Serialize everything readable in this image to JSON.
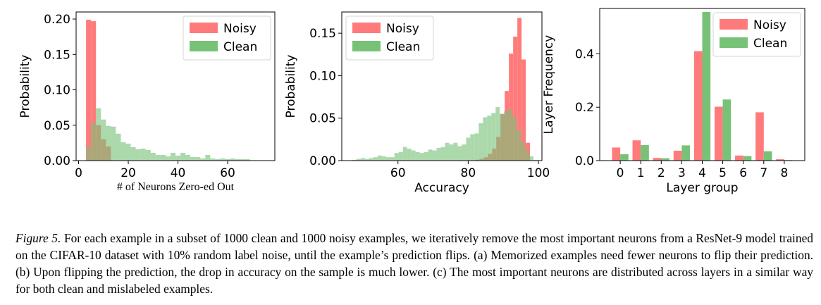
{
  "figure": {
    "caption_label": "Figure 5.",
    "caption_text": "For each example in a subset of 1000 clean and 1000 noisy examples, we iteratively remove the most important neurons from a ResNet-9 model trained on the CIFAR-10 dataset with 10% random label noise, until the example’s prediction flips. (a) Memorized examples need fewer neurons to flip their prediction. (b) Upon flipping the prediction, the drop in accuracy on the sample is much lower. (c) The most important neurons are distributed across layers in a similar way for both clean and mislabeled examples."
  },
  "colors": {
    "noisy": "#ff7b7b",
    "clean": "#77c277",
    "overlap": "#8c7a3c"
  },
  "chart_data": [
    {
      "type": "histogram",
      "xlabel": "# of Neurons Zero-ed Out",
      "ylabel": "Probability",
      "xlim": [
        -1,
        79
      ],
      "ylim": [
        0,
        0.21
      ],
      "xticks": [
        0,
        20,
        40,
        60
      ],
      "yticks": [
        0.0,
        0.05,
        0.1,
        0.15,
        0.2
      ],
      "ytick_labels": [
        "0.00",
        "0.05",
        "0.10",
        "0.15",
        "0.20"
      ],
      "legend_position": "top-right",
      "series": [
        {
          "name": "Noisy",
          "bins": [
            [
              3,
              5
            ],
            [
              5,
              7
            ],
            [
              7,
              9
            ],
            [
              9,
              11
            ],
            [
              11,
              13
            ]
          ],
          "values": [
            0.199,
            0.197,
            0.05,
            0.03,
            0.02
          ]
        },
        {
          "name": "Clean",
          "bins": [
            [
              3,
              5
            ],
            [
              5,
              7
            ],
            [
              7,
              9
            ],
            [
              9,
              11
            ],
            [
              11,
              13
            ],
            [
              13,
              15
            ],
            [
              15,
              17
            ],
            [
              17,
              19
            ],
            [
              19,
              21
            ],
            [
              21,
              23
            ],
            [
              23,
              25
            ],
            [
              25,
              27
            ],
            [
              27,
              29
            ],
            [
              29,
              31
            ],
            [
              31,
              33
            ],
            [
              33,
              35
            ],
            [
              35,
              37
            ],
            [
              37,
              39
            ],
            [
              39,
              41
            ],
            [
              41,
              43
            ],
            [
              43,
              45
            ],
            [
              45,
              47
            ],
            [
              47,
              49
            ],
            [
              49,
              51
            ],
            [
              51,
              53
            ],
            [
              53,
              55
            ],
            [
              55,
              57
            ],
            [
              57,
              59
            ],
            [
              59,
              61
            ],
            [
              61,
              63
            ],
            [
              63,
              65
            ],
            [
              65,
              67
            ],
            [
              67,
              69
            ]
          ],
          "values": [
            0.019,
            0.053,
            0.074,
            0.058,
            0.049,
            0.048,
            0.038,
            0.026,
            0.024,
            0.019,
            0.016,
            0.017,
            0.015,
            0.011,
            0.008,
            0.008,
            0.006,
            0.011,
            0.007,
            0.011,
            0.008,
            0.005,
            0.005,
            0.003,
            0.008,
            0.003,
            0.002,
            0.003,
            0.002,
            0.003,
            0.002,
            0.002,
            0.002
          ]
        }
      ]
    },
    {
      "type": "histogram",
      "xlabel": "Accuracy",
      "ylabel": "Probability",
      "xlim": [
        44,
        101
      ],
      "ylim": [
        0,
        0.175
      ],
      "xticks": [
        60,
        80,
        100
      ],
      "yticks": [
        0.0,
        0.05,
        0.1,
        0.15
      ],
      "ytick_labels": [
        "0.00",
        "0.05",
        "0.10",
        "0.15"
      ],
      "legend_position": "top-left",
      "series": [
        {
          "name": "Noisy",
          "bins": [
            [
              82,
              83.2
            ],
            [
              83.2,
              84.4
            ],
            [
              84.4,
              85.6
            ],
            [
              85.6,
              86.8
            ],
            [
              86.8,
              88
            ],
            [
              88,
              89.2
            ],
            [
              89.2,
              90.4
            ],
            [
              90.4,
              91.6
            ],
            [
              91.6,
              92.8
            ],
            [
              92.8,
              94
            ],
            [
              94,
              95.2
            ],
            [
              95.2,
              96.4
            ],
            [
              96.4,
              97.6
            ]
          ],
          "values": [
            0.001,
            0.002,
            0.004,
            0.008,
            0.014,
            0.028,
            0.055,
            0.082,
            0.126,
            0.146,
            0.168,
            0.119,
            0.021
          ]
        },
        {
          "name": "Clean",
          "bins": [
            [
              47,
              48.2
            ],
            [
              48.2,
              49.4
            ],
            [
              49.4,
              50.6
            ],
            [
              50.6,
              51.8
            ],
            [
              51.8,
              53
            ],
            [
              53,
              54.2
            ],
            [
              54.2,
              55.4
            ],
            [
              55.4,
              56.6
            ],
            [
              56.6,
              57.8
            ],
            [
              57.8,
              59
            ],
            [
              59,
              60.2
            ],
            [
              60.2,
              61.4
            ],
            [
              61.4,
              62.6
            ],
            [
              62.6,
              63.8
            ],
            [
              63.8,
              65
            ],
            [
              65,
              66.2
            ],
            [
              66.2,
              67.4
            ],
            [
              67.4,
              68.6
            ],
            [
              68.6,
              69.8
            ],
            [
              69.8,
              71
            ],
            [
              71,
              72.2
            ],
            [
              72.2,
              73.4
            ],
            [
              73.4,
              74.6
            ],
            [
              74.6,
              75.8
            ],
            [
              75.8,
              77
            ],
            [
              77,
              78.2
            ],
            [
              78.2,
              79.4
            ],
            [
              79.4,
              80.6
            ],
            [
              80.6,
              81.8
            ],
            [
              81.8,
              83
            ],
            [
              83,
              84.2
            ],
            [
              84.2,
              85.4
            ],
            [
              85.4,
              86.6
            ],
            [
              86.6,
              87.8
            ],
            [
              87.8,
              89
            ],
            [
              89,
              90.2
            ],
            [
              90.2,
              91.4
            ],
            [
              91.4,
              92.6
            ],
            [
              92.6,
              93.8
            ],
            [
              93.8,
              95
            ],
            [
              95,
              96.2
            ],
            [
              96.2,
              97.4
            ],
            [
              97.4,
              98.6
            ],
            [
              98.6,
              99.8
            ]
          ],
          "values": [
            0.001,
            0.002,
            0.003,
            0.002,
            0.003,
            0.004,
            0.006,
            0.005,
            0.004,
            0.004,
            0.009,
            0.01,
            0.016,
            0.014,
            0.012,
            0.01,
            0.009,
            0.01,
            0.013,
            0.012,
            0.015,
            0.016,
            0.021,
            0.019,
            0.021,
            0.017,
            0.019,
            0.027,
            0.031,
            0.032,
            0.044,
            0.051,
            0.053,
            0.056,
            0.063,
            0.055,
            0.058,
            0.06,
            0.051,
            0.036,
            0.022,
            0.012,
            0.005,
            0.001
          ]
        }
      ]
    },
    {
      "type": "bar",
      "xlabel": "Layer group",
      "ylabel": "Layer Frequency",
      "categories": [
        "0",
        "1",
        "2",
        "3",
        "4",
        "5",
        "6",
        "7",
        "8"
      ],
      "xlim": [
        -1.0,
        9.0
      ],
      "ylim": [
        0,
        0.57
      ],
      "yticks": [
        0.0,
        0.2,
        0.4
      ],
      "ytick_labels": [
        "0.0",
        "0.2",
        "0.4"
      ],
      "legend_position": "top-right",
      "series": [
        {
          "name": "Noisy",
          "values": [
            0.049,
            0.076,
            0.01,
            0.037,
            0.41,
            0.202,
            0.019,
            0.181,
            0.005
          ]
        },
        {
          "name": "Clean",
          "values": [
            0.024,
            0.058,
            0.009,
            0.057,
            0.557,
            0.229,
            0.017,
            0.035,
            0.002
          ]
        }
      ]
    }
  ]
}
